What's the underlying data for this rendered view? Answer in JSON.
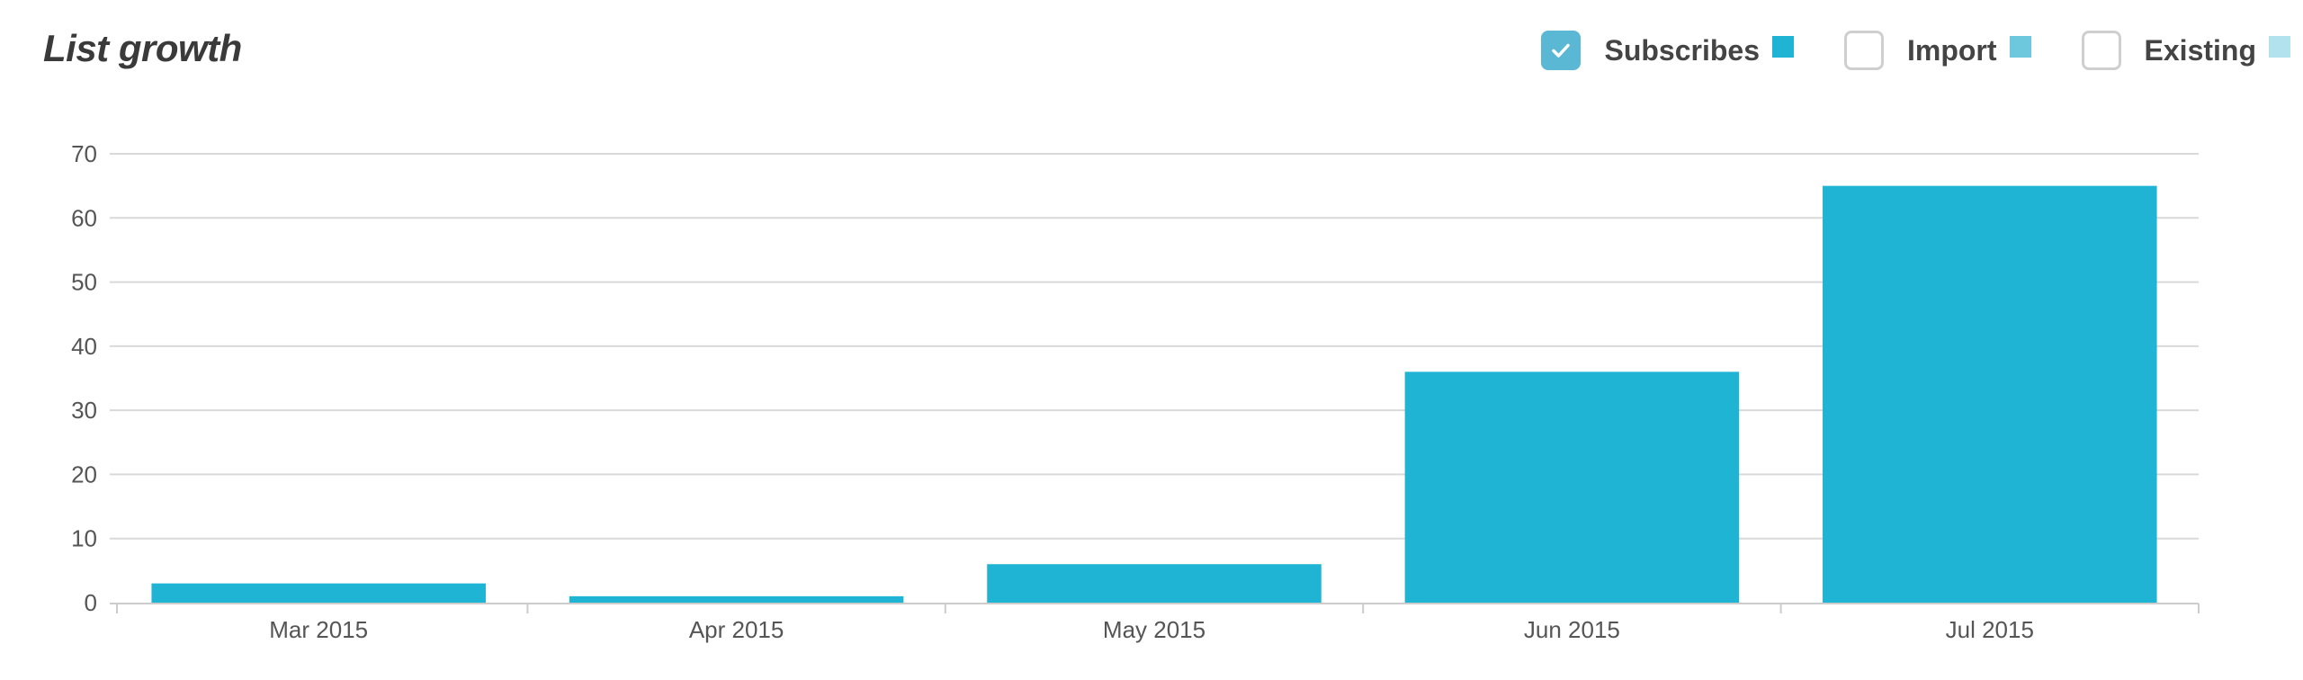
{
  "header": {
    "title": "List growth"
  },
  "legend": {
    "items": [
      {
        "label": "Subscribes",
        "checked": true,
        "color": "#1fb4d4"
      },
      {
        "label": "Import",
        "checked": false,
        "color": "#6ec8dd"
      },
      {
        "label": "Existing",
        "checked": false,
        "color": "#b3e2ef"
      }
    ]
  },
  "chart_data": {
    "type": "bar",
    "title": "List growth",
    "categories": [
      "Mar 2015",
      "Apr 2015",
      "May 2015",
      "Jun 2015",
      "Jul 2015"
    ],
    "series": [
      {
        "name": "Subscribes",
        "values": [
          3,
          1,
          6,
          36,
          65
        ],
        "color": "#1fb4d4"
      }
    ],
    "xlabel": "",
    "ylabel": "",
    "ylim": [
      0,
      70
    ],
    "yticks": [
      0,
      10,
      20,
      30,
      40,
      50,
      60,
      70
    ],
    "grid": true,
    "legend_position": "top-right",
    "gridline_color": "#d9d9d9",
    "axis_color": "#cccccc"
  }
}
